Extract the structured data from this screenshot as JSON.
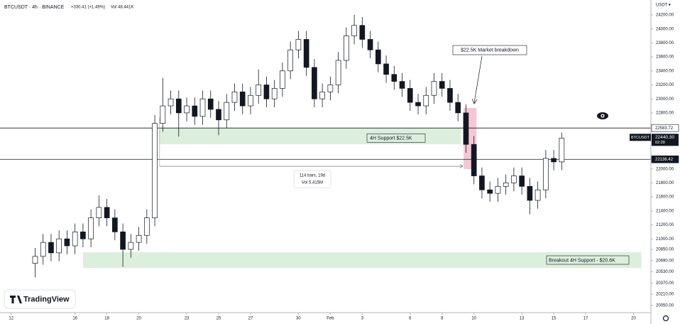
{
  "chart_data": {
    "type": "candlestick",
    "title": "BTCUSDT · 4h · BINANCE",
    "change": "+330.41 (+1.49%)",
    "volume": "Vol 48.441K",
    "currency": "USDT ▾",
    "up_color": "#ffffff",
    "down_color": "#131722",
    "outline_color": "#131722",
    "x": [
      13.5,
      14,
      14.5,
      15,
      15.5,
      16,
      16.5,
      17,
      17.5,
      18,
      18.5,
      19,
      19.5,
      20,
      20.5,
      21,
      21.5,
      22,
      22.5,
      23,
      23.5,
      24,
      24.5,
      25,
      25.5,
      26,
      26.5,
      27,
      27.5,
      28,
      28.5,
      29,
      29.5,
      30,
      30.5,
      31,
      31.5,
      32,
      32.5,
      33,
      33.5,
      34,
      34.5,
      35,
      35.5,
      36,
      36.5,
      37,
      37.5,
      38,
      38.5,
      39,
      39.5,
      40,
      40.5,
      41,
      41.5,
      42,
      42.5,
      43,
      43.5,
      44,
      44.5,
      45,
      45.5,
      46,
      46.5
    ],
    "open": [
      20650,
      20750,
      20950,
      20800,
      21000,
      20900,
      21100,
      21000,
      21300,
      21450,
      21300,
      21100,
      20850,
      20950,
      21050,
      21300,
      22650,
      22900,
      23000,
      22800,
      22900,
      22750,
      23000,
      22850,
      22700,
      22950,
      23100,
      22900,
      23050,
      23200,
      23000,
      23150,
      23400,
      23700,
      23850,
      23450,
      23000,
      23100,
      23200,
      23550,
      23900,
      24050,
      23850,
      23700,
      23500,
      23350,
      23250,
      23150,
      22950,
      22900,
      23050,
      23250,
      23150,
      22950,
      22800,
      22350,
      21900,
      21700,
      21650,
      21750,
      21800,
      21900,
      21750,
      21550,
      21700,
      22150,
      22100
    ],
    "high": [
      20870,
      21070,
      21070,
      21120,
      21120,
      21220,
      21220,
      21420,
      21620,
      21570,
      21420,
      21220,
      21070,
      21170,
      21420,
      22770,
      23300,
      23120,
      23120,
      23020,
      23020,
      23120,
      23120,
      22970,
      23070,
      23220,
      23220,
      23170,
      23420,
      23320,
      23270,
      23520,
      23820,
      23970,
      23970,
      23570,
      23220,
      23320,
      23670,
      24020,
      24200,
      24170,
      23970,
      23820,
      23620,
      23470,
      23370,
      23270,
      23070,
      23170,
      23370,
      23370,
      23270,
      23070,
      22920,
      22470,
      22020,
      21820,
      21870,
      21920,
      22020,
      22020,
      21870,
      21820,
      22270,
      22270,
      22520
    ],
    "low": [
      20450,
      20630,
      20680,
      20680,
      20780,
      20780,
      20880,
      20880,
      21180,
      21180,
      20980,
      20600,
      20730,
      20830,
      20930,
      21180,
      22530,
      22780,
      22460,
      22680,
      22630,
      22630,
      22730,
      22480,
      22580,
      22830,
      22780,
      22780,
      22930,
      22880,
      22880,
      23030,
      23280,
      23580,
      23330,
      22880,
      22880,
      22980,
      23080,
      23430,
      23780,
      23730,
      23580,
      23380,
      23230,
      23130,
      23030,
      22830,
      22780,
      22780,
      22930,
      23030,
      22830,
      22680,
      22230,
      21780,
      21580,
      21530,
      21530,
      21630,
      21680,
      21630,
      21350,
      21430,
      21580,
      21980,
      21980
    ],
    "close": [
      20750,
      20950,
      20800,
      21000,
      20900,
      21100,
      21000,
      21300,
      21450,
      21300,
      21100,
      20850,
      20950,
      21050,
      21300,
      22650,
      22900,
      23000,
      22800,
      22900,
      22750,
      23000,
      22850,
      22700,
      22950,
      23100,
      22900,
      23050,
      23200,
      23000,
      23150,
      23400,
      23700,
      23850,
      23450,
      23000,
      23100,
      23200,
      23550,
      23900,
      24050,
      23850,
      23700,
      23500,
      23350,
      23250,
      23150,
      22950,
      22900,
      23050,
      23250,
      23150,
      22950,
      22800,
      22350,
      21900,
      21700,
      21650,
      21750,
      21800,
      21900,
      21750,
      21550,
      21700,
      22150,
      22100,
      22440.3
    ],
    "xlim": [
      11.3,
      52
    ],
    "ylim": [
      19946,
      24413
    ],
    "xticks": [
      12,
      16,
      18,
      20,
      23,
      25,
      27,
      30,
      {
        "value": 32,
        "label": "Feb"
      },
      {
        "value": 34,
        "label": "3"
      },
      {
        "value": 37,
        "label": "6"
      },
      {
        "value": 39,
        "label": "8"
      },
      {
        "value": 41,
        "label": "10"
      },
      {
        "value": 44,
        "label": "13"
      },
      {
        "value": 46,
        "label": "15"
      },
      {
        "value": 48,
        "label": "17"
      },
      {
        "value": 51,
        "label": "20"
      }
    ],
    "yticks": [
      {
        "value": 24200,
        "label": "24200.00"
      },
      {
        "value": 24000,
        "label": "24000.00"
      },
      {
        "value": 23800,
        "label": "23800.00"
      },
      {
        "value": 23600,
        "label": "23600.00"
      },
      {
        "value": 23400,
        "label": "23400.00"
      },
      {
        "value": 23200,
        "label": "23200.00"
      },
      {
        "value": 23000,
        "label": "23000.00"
      },
      {
        "value": 22800,
        "label": "22800.00"
      },
      {
        "value": 22000,
        "label": "22000.00"
      },
      {
        "value": 21800,
        "label": "21800.00"
      },
      {
        "value": 21600,
        "label": "21600.00"
      },
      {
        "value": 21400,
        "label": "21400.00"
      },
      {
        "value": 21200,
        "label": "21200.00"
      },
      {
        "value": 21000,
        "label": "21000.00"
      },
      {
        "value": 20850,
        "label": "20850.00"
      },
      {
        "value": 20690,
        "label": "20690.00"
      },
      {
        "value": 20530,
        "label": "20530.00"
      },
      {
        "value": 20370,
        "label": "20370.00"
      },
      {
        "value": 20210,
        "label": "20210.00"
      },
      {
        "value": 20050,
        "label": "20050.00"
      }
    ],
    "price_lines": [
      22583.72,
      22136.42
    ],
    "last_price": {
      "value": 22440.3,
      "label": "22440.30"
    },
    "symbol": "BTCUSDT",
    "countdown": "02:28",
    "zones": [
      {
        "text": "4H Support   $22.5K",
        "range": [
          22352,
          22583
        ],
        "xrange": [
          21.3,
          40.2
        ],
        "color": "#dcefdc"
      },
      {
        "text": "Breakout 4H Support - $20.6K",
        "range": [
          20586,
          20809
        ],
        "xrange": [
          16.5,
          51.5
        ],
        "color": "#dcefdc"
      }
    ],
    "highlight": {
      "range": [
        21997,
        22870
      ],
      "xrange": [
        40.35,
        41.16
      ],
      "color": "#f4c7d3"
    },
    "callout": "$22.5K Market breakdown",
    "measure": {
      "price": 22037,
      "xrange": [
        21.3,
        40.3
      ],
      "bars": "114 bars, 19d",
      "volume": "Vol 5.415M"
    },
    "brand": "TradingView"
  }
}
